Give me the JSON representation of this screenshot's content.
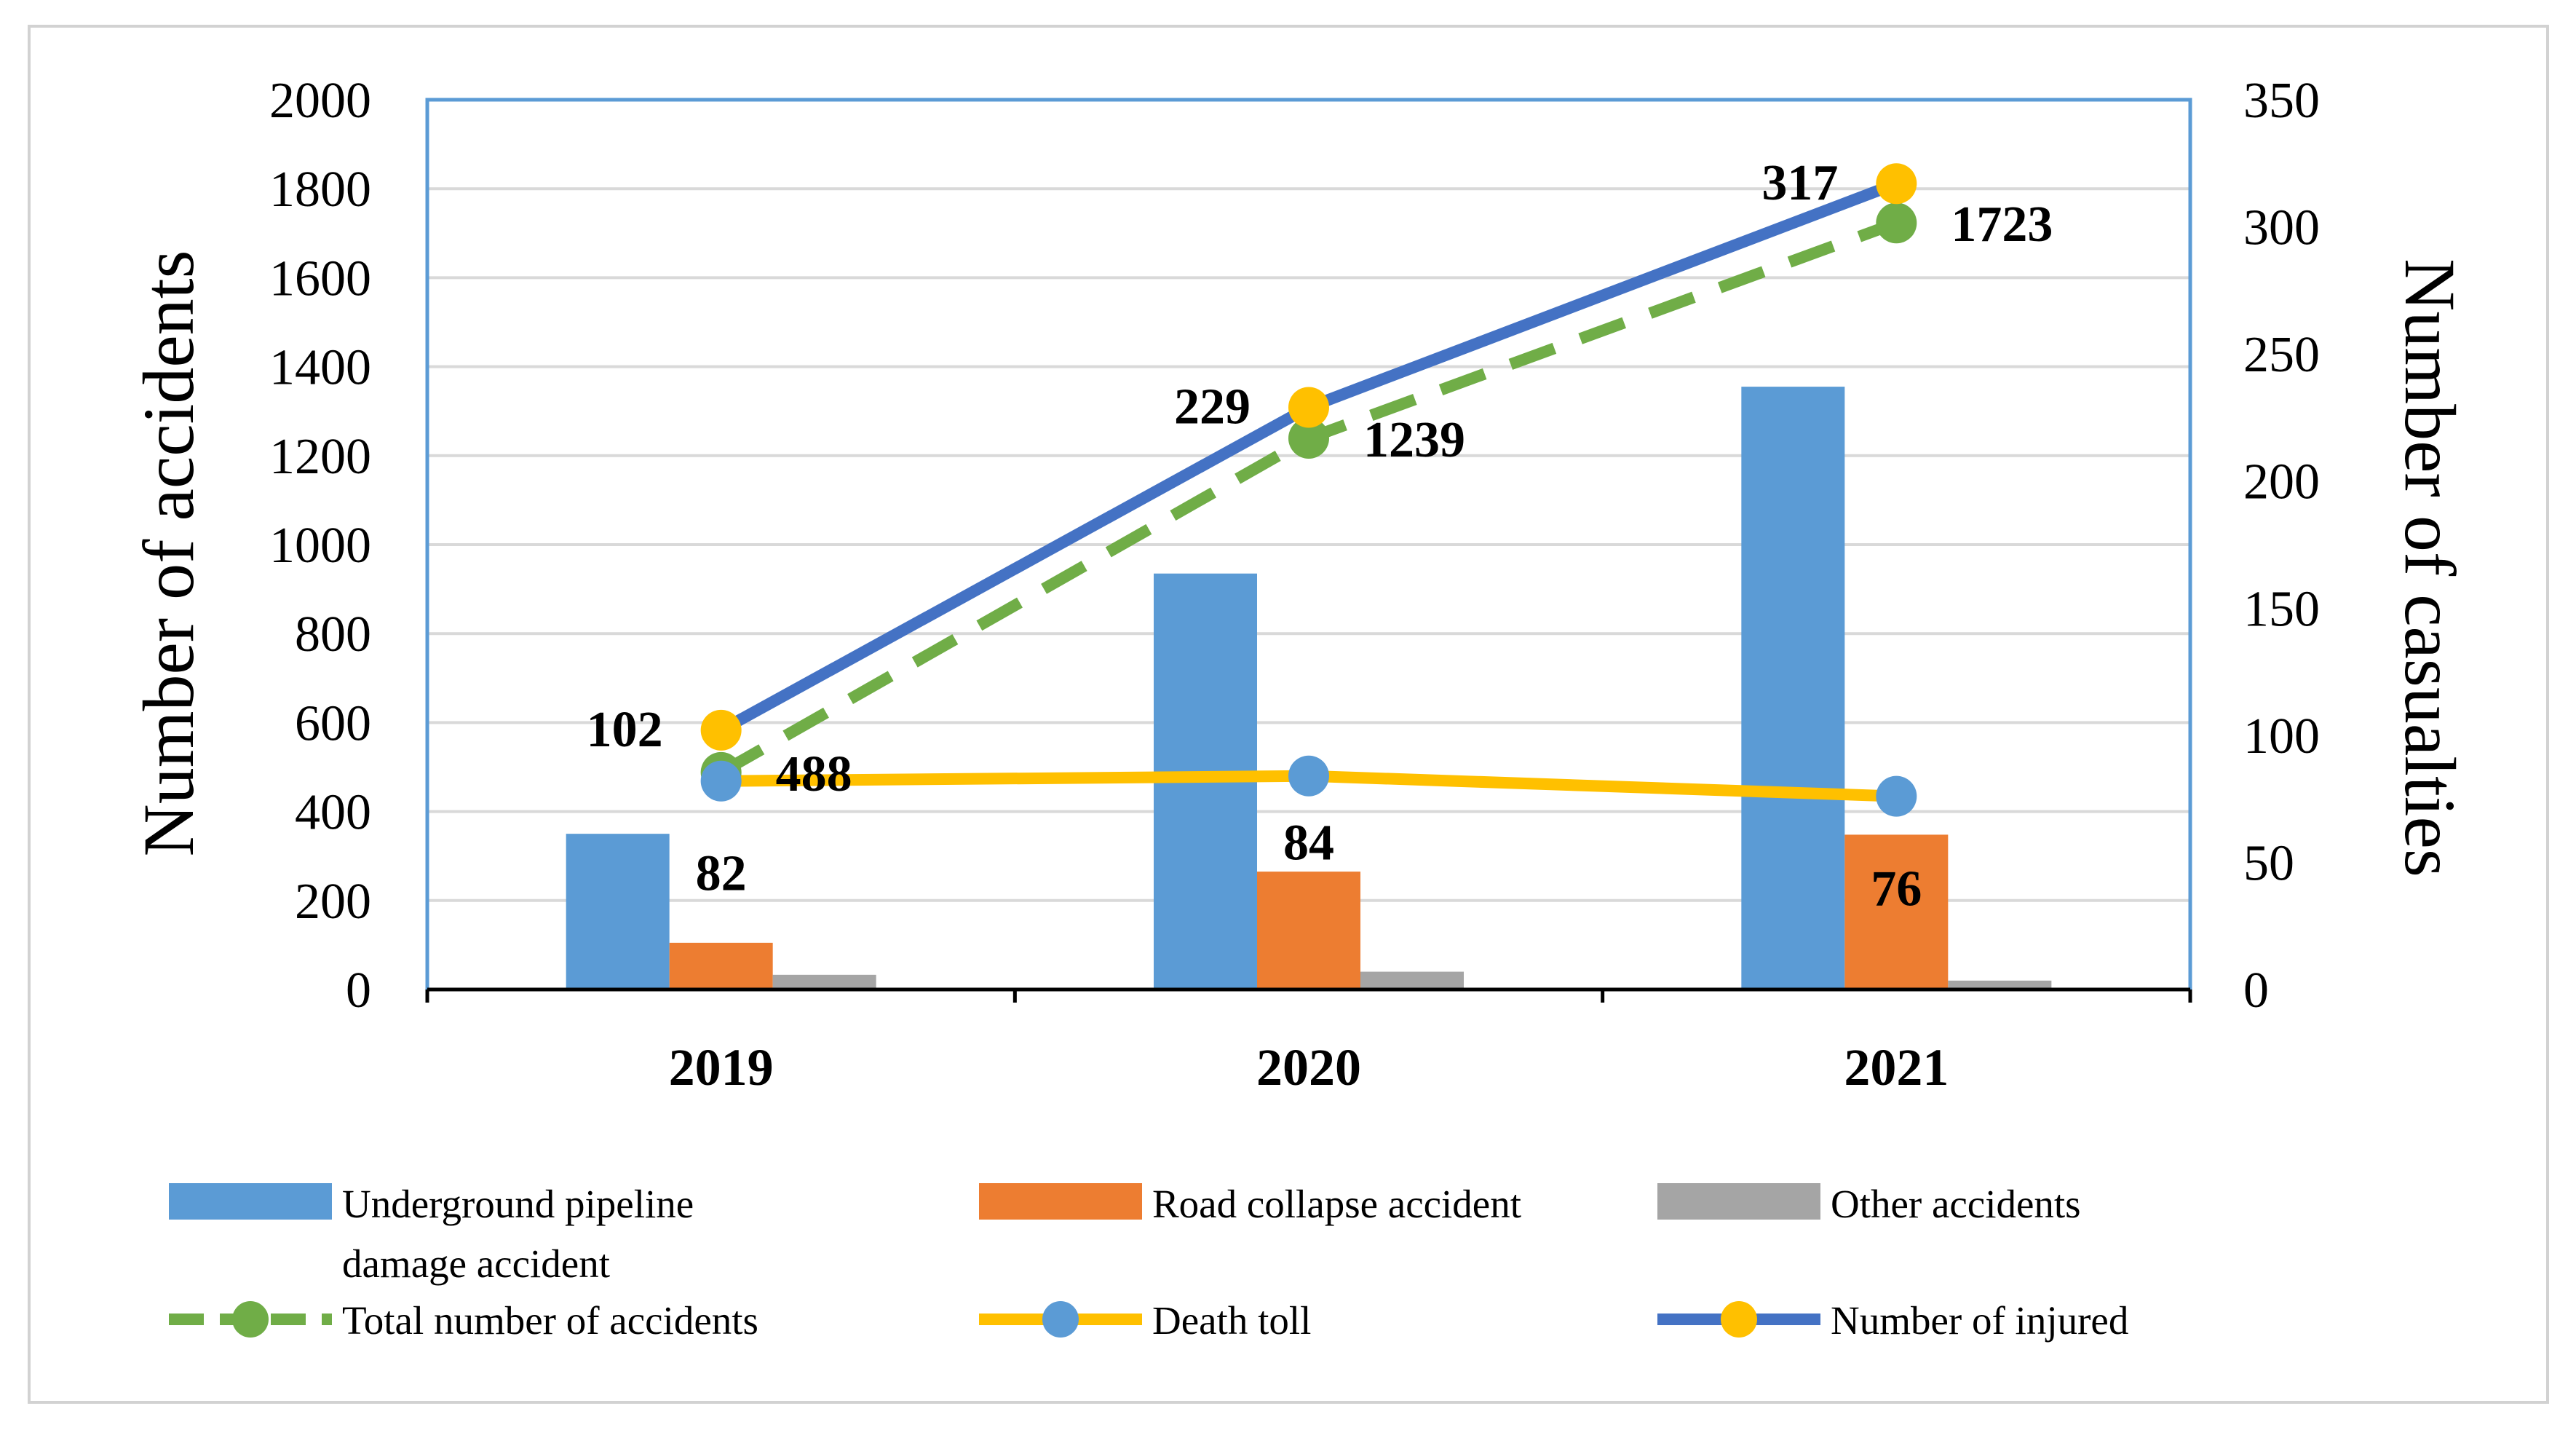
{
  "chart_data": {
    "type": "bar",
    "categories": [
      "2019",
      "2020",
      "2021"
    ],
    "left_axis": {
      "label": "Number of accidents",
      "ylim": [
        0,
        2000
      ],
      "ticks": [
        "0",
        "200",
        "400",
        "600",
        "800",
        "1000",
        "1200",
        "1400",
        "1600",
        "1800",
        "2000"
      ],
      "tick_values": [
        0,
        200,
        400,
        600,
        800,
        1000,
        1200,
        1400,
        1600,
        1800,
        2000
      ]
    },
    "right_axis": {
      "label": "Number of casualties",
      "ylim": [
        0,
        350
      ],
      "ticks": [
        "0",
        "50",
        "100",
        "150",
        "200",
        "250",
        "300",
        "350"
      ],
      "tick_values": [
        0,
        50,
        100,
        150,
        200,
        250,
        300,
        350
      ]
    },
    "bar_series": [
      {
        "name": "Underground pipeline damage accident",
        "legend_lines": [
          "Underground pipeline",
          "damage accident"
        ],
        "color": "#5b9bd5",
        "axis": "left",
        "values": [
          350,
          935,
          1355
        ]
      },
      {
        "name": "Road collapse accident",
        "legend_lines": [
          "Road collapse accident"
        ],
        "color": "#ed7d31",
        "axis": "left",
        "values": [
          105,
          265,
          348
        ]
      },
      {
        "name": "Other accidents",
        "legend_lines": [
          "Other accidents"
        ],
        "color": "#a5a5a5",
        "axis": "left",
        "values": [
          33,
          40,
          20
        ]
      }
    ],
    "line_series": [
      {
        "name": "Total number of accidents",
        "color": "#70ad47",
        "style": "dashed",
        "axis": "left",
        "values": [
          488,
          1239,
          1723
        ],
        "labels": [
          "488",
          "1239",
          "1723"
        ]
      },
      {
        "name": "Death toll",
        "color": "#ffc000",
        "marker_color": "#5b9bd5",
        "style": "solid",
        "axis": "right",
        "values": [
          82,
          84,
          76
        ],
        "labels": [
          "82",
          "84",
          "76"
        ]
      },
      {
        "name": "Number of injured",
        "color": "#4472c4",
        "marker_color": "#ffc000",
        "style": "solid",
        "axis": "right",
        "values": [
          102,
          229,
          317
        ],
        "labels": [
          "102",
          "229",
          "317"
        ]
      }
    ],
    "legend_position": "bottom",
    "grid": true
  }
}
